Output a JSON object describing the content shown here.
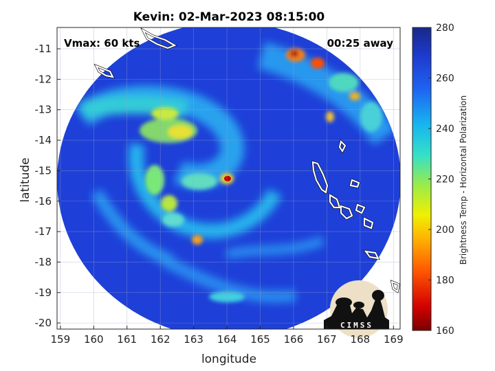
{
  "title": "Kevin: 02-Mar-2023 08:15:00",
  "annotations": {
    "left": "Vmax: 60 kts",
    "right": "00:25 away"
  },
  "logo": {
    "text": "CIMSS"
  },
  "colors": {
    "ocean_warm": "#1d3fd6",
    "colormap": [
      "#7a0000",
      "#d40000",
      "#ff5a00",
      "#ffb000",
      "#f0f000",
      "#9aeb4a",
      "#34e0c8",
      "#18b4f0",
      "#1e62f0",
      "#1e3cd0",
      "#18288a"
    ]
  },
  "chart_data": {
    "type": "heatmap",
    "title": "Kevin: 02-Mar-2023 08:15:00",
    "xlabel": "longitude",
    "ylabel": "latitude",
    "xlim": [
      158.9,
      169.2
    ],
    "ylim": [
      -20.2,
      -10.3
    ],
    "x_ticks": [
      "159",
      "160",
      "161",
      "162",
      "163",
      "164",
      "165",
      "166",
      "167",
      "168",
      "169"
    ],
    "y_ticks": [
      "-11",
      "-12",
      "-13",
      "-14",
      "-15",
      "-16",
      "-17",
      "-18",
      "-19",
      "-20"
    ],
    "grid": true,
    "colorbar": {
      "label": "Brightness Temp - Horizontal Polarization",
      "range": [
        160,
        280
      ],
      "ticks": [
        "280",
        "260",
        "240",
        "220",
        "200",
        "180",
        "160"
      ]
    },
    "storm_center": {
      "lon": 164.1,
      "lat": -15.2
    },
    "swath_center": {
      "lon": 163.9,
      "lat": -15.3
    }
  }
}
